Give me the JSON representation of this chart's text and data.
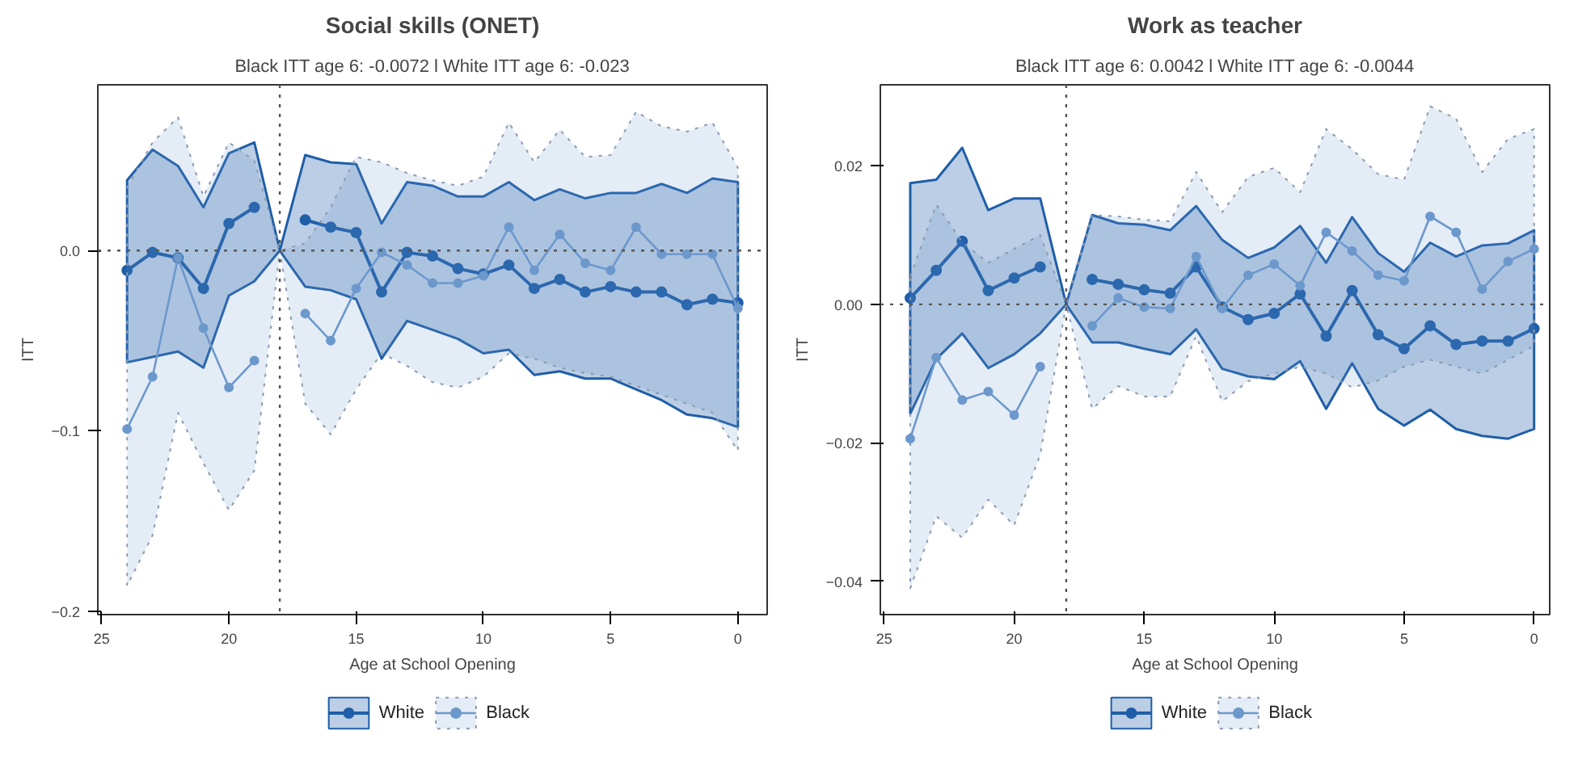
{
  "chart_data": [
    {
      "type": "line",
      "title": "Social skills (ONET)",
      "subtitle": "Black ITT age 6: -0.0072 l White ITT age 6: -0.023",
      "xlabel": "Age at School Opening",
      "ylabel": "ITT",
      "x": [
        24,
        23,
        22,
        21,
        20,
        19,
        18,
        17,
        16,
        15,
        14,
        13,
        12,
        11,
        10,
        9,
        8,
        7,
        6,
        5,
        4,
        3,
        2,
        1,
        0
      ],
      "xlim": [
        25.15,
        -1.15
      ],
      "xticks": [
        25,
        20,
        15,
        10,
        5,
        0
      ],
      "ylim": [
        -0.202,
        0.092
      ],
      "yticks": [
        {
          "value": 0,
          "label": "0.0"
        },
        -0.1,
        -0.2
      ],
      "grid": false,
      "legend": "bottom",
      "marker": "circle",
      "ref_lines": [
        {
          "axis": "y",
          "value": 0,
          "line_style": "dotted",
          "color": "#555555"
        },
        {
          "axis": "x",
          "value": 18,
          "line_style": "dotted",
          "color": "#555555"
        }
      ],
      "series": [
        {
          "name": "White",
          "color": "#1f5ea8",
          "values": [
            -0.011,
            -0.001,
            -0.004,
            -0.021,
            0.015,
            0.024,
            null,
            0.017,
            0.013,
            0.01,
            -0.023,
            -0.001,
            -0.003,
            -0.01,
            -0.013,
            -0.008,
            -0.021,
            -0.016,
            -0.023,
            -0.02,
            -0.023,
            -0.023,
            -0.03,
            -0.027,
            -0.029
          ],
          "upper": [
            0.039,
            0.056,
            0.047,
            0.024,
            0.054,
            0.06,
            0,
            0.053,
            0.049,
            0.048,
            0.015,
            0.038,
            0.036,
            0.03,
            0.03,
            0.038,
            0.028,
            0.034,
            0.029,
            0.032,
            0.032,
            0.037,
            0.032,
            0.04,
            0.038
          ],
          "lower": [
            -0.062,
            -0.059,
            -0.056,
            -0.065,
            -0.025,
            -0.017,
            0,
            -0.02,
            -0.022,
            -0.027,
            -0.06,
            -0.039,
            -0.044,
            -0.049,
            -0.057,
            -0.055,
            -0.069,
            -0.067,
            -0.071,
            -0.071,
            -0.077,
            -0.083,
            -0.091,
            -0.093,
            -0.098
          ]
        },
        {
          "name": "Black",
          "color": "#6c98cc",
          "values": [
            -0.099,
            -0.07,
            -0.004,
            -0.043,
            -0.076,
            -0.061,
            null,
            -0.035,
            -0.05,
            -0.021,
            -0.001,
            -0.008,
            -0.018,
            -0.018,
            -0.014,
            0.013,
            -0.011,
            0.009,
            -0.007,
            -0.011,
            0.013,
            -0.002,
            -0.002,
            -0.002,
            -0.032
          ],
          "upper": [
            0.035,
            0.06,
            0.074,
            0.03,
            0.06,
            0.05,
            0,
            0.004,
            0.024,
            0.052,
            0.049,
            0.043,
            0.039,
            0.036,
            0.041,
            0.071,
            0.049,
            0.067,
            0.052,
            0.053,
            0.077,
            0.069,
            0.066,
            0.071,
            0.046
          ],
          "lower": [
            -0.186,
            -0.158,
            -0.09,
            -0.118,
            -0.144,
            -0.122,
            0,
            -0.085,
            -0.102,
            -0.077,
            -0.057,
            -0.064,
            -0.073,
            -0.076,
            -0.07,
            -0.057,
            -0.06,
            -0.065,
            -0.068,
            -0.07,
            -0.075,
            -0.08,
            -0.085,
            -0.09,
            -0.111
          ]
        }
      ]
    },
    {
      "type": "line",
      "title": "Work as teacher",
      "subtitle": "Black ITT age 6: 0.0042 l White ITT age 6: -0.0044",
      "xlabel": "Age at School Opening",
      "ylabel": "ITT",
      "x": [
        24,
        23,
        22,
        21,
        20,
        19,
        18,
        17,
        16,
        15,
        14,
        13,
        12,
        11,
        10,
        9,
        8,
        7,
        6,
        5,
        4,
        3,
        2,
        1,
        0
      ],
      "xlim": [
        25.15,
        -0.6
      ],
      "xticks": [
        25,
        20,
        15,
        10,
        5,
        0
      ],
      "ylim": [
        -0.0448,
        0.0317
      ],
      "yticks": [
        0.02,
        {
          "value": 0,
          "label": "0.00"
        },
        -0.02,
        -0.04
      ],
      "grid": false,
      "legend": "bottom",
      "marker": "circle",
      "ref_lines": [
        {
          "axis": "y",
          "value": 0,
          "line_style": "dotted",
          "color": "#555555"
        },
        {
          "axis": "x",
          "value": 18,
          "line_style": "dotted",
          "color": "#555555"
        }
      ],
      "series": [
        {
          "name": "White",
          "color": "#1f5ea8",
          "values": [
            0.0009,
            0.0049,
            0.0091,
            0.002,
            0.0038,
            0.0054,
            null,
            0.0036,
            0.0029,
            0.0021,
            0.0016,
            0.0054,
            -0.0004,
            -0.0022,
            -0.0013,
            0.0015,
            -0.0046,
            0.002,
            -0.0044,
            -0.0064,
            -0.0031,
            -0.0058,
            -0.0053,
            -0.0053,
            -0.0035
          ],
          "upper": [
            0.0175,
            0.018,
            0.0226,
            0.0136,
            0.0153,
            0.0153,
            0,
            0.0129,
            0.0117,
            0.0115,
            0.0107,
            0.0142,
            0.0093,
            0.0067,
            0.0082,
            0.0113,
            0.006,
            0.0126,
            0.0074,
            0.0047,
            0.0089,
            0.0069,
            0.0085,
            0.0088,
            0.0107
          ],
          "lower": [
            -0.0158,
            -0.0079,
            -0.0042,
            -0.0092,
            -0.0072,
            -0.0042,
            0,
            -0.0055,
            -0.0055,
            -0.0064,
            -0.0072,
            -0.0036,
            -0.0093,
            -0.0104,
            -0.0108,
            -0.0082,
            -0.0151,
            -0.0085,
            -0.0151,
            -0.0175,
            -0.0152,
            -0.018,
            -0.019,
            -0.0194,
            -0.018
          ]
        },
        {
          "name": "Black",
          "color": "#6c98cc",
          "values": [
            -0.0194,
            -0.0077,
            -0.0138,
            -0.0126,
            -0.016,
            -0.009,
            null,
            -0.0031,
            0.0009,
            -0.0004,
            -0.0006,
            0.0069,
            -0.0006,
            0.0042,
            0.0058,
            0.0027,
            0.0104,
            0.0077,
            0.0042,
            0.0034,
            0.0127,
            0.0104,
            0.0022,
            0.0062,
            0.008
          ],
          "upper": [
            0.004,
            0.0144,
            0.009,
            0.006,
            0.008,
            0.01,
            0,
            0.0129,
            0.0127,
            0.0122,
            0.012,
            0.0191,
            0.0133,
            0.0184,
            0.0197,
            0.0162,
            0.0253,
            0.0224,
            0.0188,
            0.018,
            0.0286,
            0.0268,
            0.0191,
            0.0239,
            0.0253
          ],
          "lower": [
            -0.041,
            -0.0306,
            -0.0337,
            -0.0282,
            -0.0319,
            -0.0217,
            0,
            -0.0151,
            -0.0118,
            -0.0133,
            -0.0133,
            -0.0046,
            -0.014,
            -0.0111,
            -0.01,
            -0.009,
            -0.01,
            -0.012,
            -0.011,
            -0.009,
            -0.008,
            -0.009,
            -0.01,
            -0.008,
            -0.006
          ]
        }
      ]
    }
  ]
}
